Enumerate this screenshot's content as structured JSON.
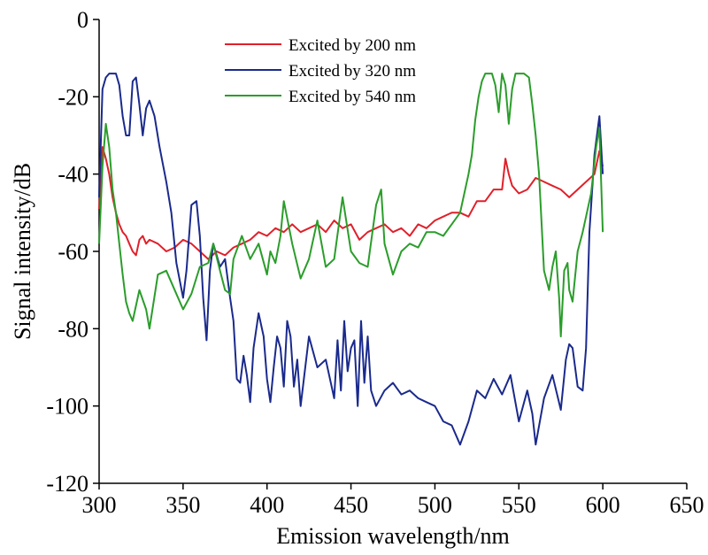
{
  "chart_data": {
    "type": "line",
    "title": "",
    "xlabel": "Emission wavelength/nm",
    "ylabel": "Signal intensity/dB",
    "xlim": [
      300,
      650
    ],
    "ylim": [
      -120,
      0
    ],
    "xticks": [
      300,
      350,
      400,
      450,
      500,
      550,
      600,
      650
    ],
    "yticks": [
      0,
      -20,
      -40,
      -60,
      -80,
      -100,
      -120
    ],
    "grid": false,
    "legend": "top-center",
    "series": [
      {
        "name": "Excited by 200 nm",
        "color": "#e0202a",
        "x": [
          300,
          302,
          304,
          306,
          308,
          310,
          312,
          314,
          316,
          318,
          320,
          322,
          324,
          326,
          328,
          330,
          335,
          340,
          345,
          350,
          355,
          360,
          365,
          370,
          375,
          380,
          385,
          390,
          395,
          400,
          405,
          410,
          415,
          420,
          425,
          430,
          435,
          440,
          445,
          450,
          455,
          460,
          465,
          470,
          475,
          480,
          485,
          490,
          495,
          500,
          505,
          510,
          515,
          520,
          525,
          530,
          535,
          540,
          542,
          544,
          546,
          550,
          555,
          560,
          565,
          570,
          575,
          580,
          585,
          590,
          595,
          598,
          600
        ],
        "values": [
          -49,
          -33,
          -36,
          -40,
          -46,
          -50,
          -53,
          -55,
          -56,
          -58,
          -60,
          -61,
          -57,
          -56,
          -58,
          -57,
          -58,
          -60,
          -59,
          -57,
          -58,
          -60,
          -62,
          -60,
          -61,
          -59,
          -58,
          -57,
          -55,
          -56,
          -54,
          -55,
          -53,
          -55,
          -54,
          -53,
          -55,
          -52,
          -54,
          -53,
          -57,
          -55,
          -54,
          -53,
          -55,
          -54,
          -56,
          -53,
          -54,
          -52,
          -51,
          -50,
          -50,
          -51,
          -47,
          -47,
          -44,
          -44,
          -36,
          -40,
          -43,
          -45,
          -44,
          -41,
          -42,
          -43,
          -44,
          -46,
          -44,
          -42,
          -40,
          -34,
          -38
        ]
      },
      {
        "name": "Excited by 320 nm",
        "color": "#1a2a8c",
        "x": [
          300,
          302,
          304,
          306,
          308,
          310,
          312,
          314,
          316,
          318,
          320,
          322,
          324,
          326,
          328,
          330,
          333,
          336,
          340,
          343,
          346,
          350,
          352,
          355,
          358,
          360,
          362,
          364,
          366,
          368,
          372,
          375,
          378,
          380,
          382,
          384,
          386,
          388,
          390,
          392,
          395,
          398,
          400,
          402,
          404,
          406,
          408,
          410,
          412,
          414,
          416,
          418,
          420,
          425,
          430,
          435,
          440,
          442,
          444,
          446,
          448,
          450,
          452,
          454,
          456,
          458,
          460,
          462,
          465,
          470,
          475,
          480,
          485,
          490,
          495,
          500,
          505,
          510,
          515,
          520,
          525,
          530,
          535,
          540,
          545,
          550,
          555,
          558,
          560,
          565,
          570,
          575,
          578,
          580,
          582,
          585,
          588,
          590,
          592,
          595,
          598,
          600
        ],
        "values": [
          -46,
          -18,
          -15,
          -14,
          -14,
          -14,
          -17,
          -25,
          -30,
          -30,
          -16,
          -15,
          -22,
          -30,
          -23,
          -21,
          -25,
          -33,
          -42,
          -50,
          -63,
          -72,
          -65,
          -48,
          -47,
          -56,
          -72,
          -83,
          -65,
          -58,
          -64,
          -62,
          -72,
          -78,
          -93,
          -94,
          -87,
          -92,
          -99,
          -85,
          -76,
          -82,
          -93,
          -99,
          -90,
          -82,
          -85,
          -95,
          -78,
          -82,
          -95,
          -88,
          -100,
          -82,
          -90,
          -88,
          -98,
          -83,
          -96,
          -78,
          -91,
          -85,
          -83,
          -100,
          -78,
          -94,
          -82,
          -96,
          -100,
          -96,
          -94,
          -97,
          -96,
          -98,
          -99,
          -100,
          -104,
          -105,
          -110,
          -104,
          -96,
          -98,
          -93,
          -97,
          -92,
          -104,
          -96,
          -102,
          -110,
          -98,
          -92,
          -101,
          -88,
          -84,
          -85,
          -95,
          -96,
          -85,
          -55,
          -35,
          -25,
          -40
        ]
      },
      {
        "name": "Excited by 540 nm",
        "color": "#2a9d2a",
        "x": [
          300,
          302,
          304,
          306,
          308,
          310,
          312,
          314,
          316,
          318,
          320,
          324,
          328,
          330,
          335,
          340,
          345,
          350,
          355,
          360,
          365,
          368,
          372,
          375,
          378,
          380,
          385,
          390,
          395,
          400,
          402,
          405,
          408,
          410,
          415,
          420,
          425,
          430,
          435,
          440,
          445,
          450,
          455,
          460,
          465,
          468,
          470,
          475,
          480,
          485,
          490,
          495,
          500,
          505,
          510,
          515,
          520,
          522,
          524,
          526,
          528,
          530,
          532,
          534,
          536,
          538,
          540,
          542,
          544,
          546,
          548,
          550,
          553,
          556,
          558,
          560,
          562,
          565,
          568,
          570,
          572,
          574,
          575,
          577,
          579,
          580,
          582,
          585,
          588,
          590,
          593,
          596,
          598,
          600
        ],
        "values": [
          -58,
          -38,
          -27,
          -33,
          -44,
          -50,
          -58,
          -66,
          -73,
          -76,
          -78,
          -70,
          -75,
          -80,
          -66,
          -65,
          -70,
          -75,
          -71,
          -64,
          -63,
          -58,
          -65,
          -70,
          -71,
          -62,
          -56,
          -62,
          -58,
          -66,
          -60,
          -63,
          -56,
          -47,
          -58,
          -67,
          -62,
          -52,
          -64,
          -62,
          -46,
          -60,
          -63,
          -64,
          -48,
          -44,
          -58,
          -66,
          -60,
          -58,
          -59,
          -55,
          -55,
          -56,
          -53,
          -50,
          -40,
          -35,
          -26,
          -20,
          -16,
          -14,
          -14,
          -14,
          -17,
          -24,
          -14,
          -17,
          -27,
          -18,
          -14,
          -14,
          -14,
          -15,
          -22,
          -30,
          -40,
          -65,
          -70,
          -64,
          -60,
          -72,
          -82,
          -65,
          -63,
          -70,
          -73,
          -60,
          -55,
          -51,
          -45,
          -33,
          -28,
          -55
        ]
      }
    ]
  }
}
